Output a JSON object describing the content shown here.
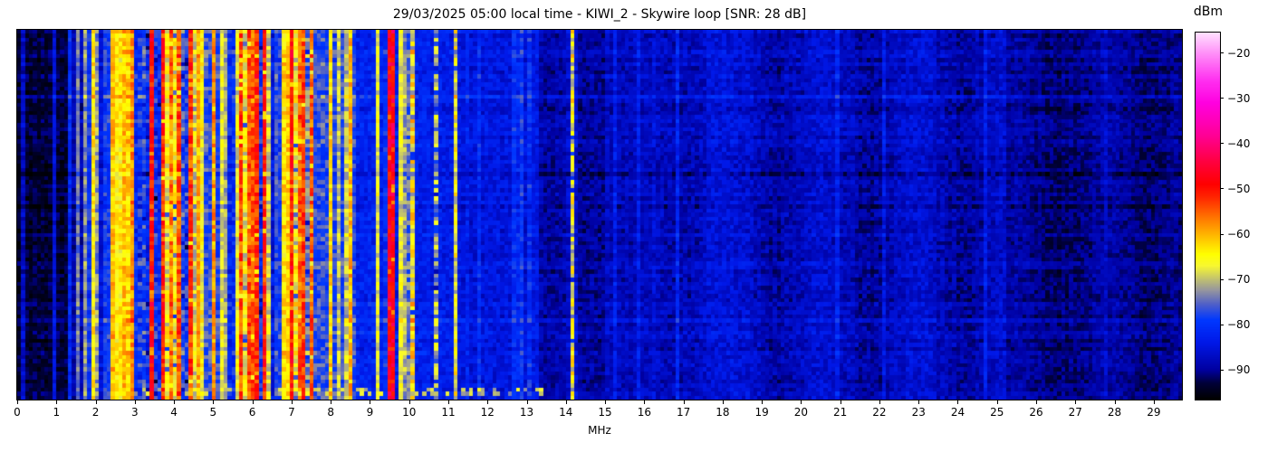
{
  "chart_data": {
    "type": "heatmap",
    "subtype": "radio-spectrogram-waterfall",
    "title": "29/03/2025 05:00 local time - KIWI_2 - Skywire loop [SNR: 28 dB]",
    "xlabel": "MHz",
    "x_range": [
      0,
      29.72
    ],
    "x_tick_labels": [
      "0",
      "1",
      "2",
      "3",
      "4",
      "5",
      "6",
      "7",
      "8",
      "9",
      "10",
      "11",
      "12",
      "13",
      "14",
      "15",
      "16",
      "17",
      "18",
      "19",
      "20",
      "21",
      "22",
      "23",
      "24",
      "25",
      "26",
      "27",
      "28",
      "29"
    ],
    "x_tick_values": [
      0,
      1,
      2,
      3,
      4,
      5,
      6,
      7,
      8,
      9,
      10,
      11,
      12,
      13,
      14,
      15,
      16,
      17,
      18,
      19,
      20,
      21,
      22,
      23,
      24,
      25,
      26,
      27,
      28,
      29
    ],
    "y_axis_note": "time axis, no tick labels shown",
    "grid_visible": false,
    "legend": "colorbar right",
    "colorbar": {
      "label": "dBm",
      "tick_values": [
        -20,
        -30,
        -40,
        -50,
        -60,
        -70,
        -80,
        -90
      ],
      "tick_labels": [
        "−20",
        "−30",
        "−40",
        "−50",
        "−60",
        "−70",
        "−80",
        "−90"
      ],
      "vmin": -96.5,
      "vmax": -15.5,
      "gradient_stops": [
        [
          -96.5,
          "#000000"
        ],
        [
          -93.0,
          "#000038"
        ],
        [
          -90.0,
          "#0000a0"
        ],
        [
          -84.0,
          "#0018e8"
        ],
        [
          -79.0,
          "#0038ff"
        ],
        [
          -75.5,
          "#5060c8"
        ],
        [
          -72.5,
          "#9494a0"
        ],
        [
          -70.0,
          "#c0c070"
        ],
        [
          -67.0,
          "#f8f830"
        ],
        [
          -64.5,
          "#ffff00"
        ],
        [
          -61.0,
          "#ffc400"
        ],
        [
          -57.0,
          "#ff8000"
        ],
        [
          -52.0,
          "#ff2800"
        ],
        [
          -49.0,
          "#ff0000"
        ],
        [
          -44.0,
          "#ff0040"
        ],
        [
          -38.0,
          "#ff0098"
        ],
        [
          -31.0,
          "#ff00e0"
        ],
        [
          -26.0,
          "#ff30f0"
        ],
        [
          -20.0,
          "#ff90f8"
        ],
        [
          -15.5,
          "#ffe0ff"
        ]
      ]
    },
    "signal_bands": [
      {
        "f0": 0.0,
        "f1": 1.4,
        "base": -93.0,
        "noise": 2.4,
        "gapP": 0.0,
        "gapD": 0,
        "carP": 0.03,
        "cb0": 4,
        "cb1": 9,
        "mod": 0
      },
      {
        "f0": 1.4,
        "f1": 1.78,
        "base": -88.0,
        "noise": 3.0,
        "gapP": 0.1,
        "gapD": 6,
        "carP": 0.3,
        "cb0": 8,
        "cb1": 17,
        "mod": 0
      },
      {
        "f0": 1.78,
        "f1": 2.12,
        "base": -80.0,
        "noise": 3.5,
        "gapP": 0.15,
        "gapD": 6,
        "carP": 0.5,
        "cb0": 8,
        "cb1": 18,
        "mod": 0
      },
      {
        "f0": 2.12,
        "f1": 2.58,
        "base": -79.0,
        "noise": 3.5,
        "gapP": 0.2,
        "gapD": 6,
        "carP": 0.5,
        "cb0": 6,
        "cb1": 20,
        "mod": 0
      },
      {
        "f0": 2.58,
        "f1": 3.12,
        "base": -74.0,
        "noise": 4.0,
        "gapP": 0.2,
        "gapD": 8,
        "carP": 0.6,
        "cb0": 6,
        "cb1": 18,
        "mod": 0
      },
      {
        "f0": 3.12,
        "f1": 4.52,
        "base": -66.0,
        "noise": 5.0,
        "gapP": 0.22,
        "gapD": 11,
        "carP": 0.55,
        "cb0": 8,
        "cb1": 17,
        "mod": 0
      },
      {
        "f0": 4.52,
        "f1": 5.15,
        "base": -77.0,
        "noise": 4.0,
        "gapP": 0.15,
        "gapD": 5,
        "carP": 0.5,
        "cb0": 6,
        "cb1": 20,
        "mod": 0
      },
      {
        "f0": 5.15,
        "f1": 5.65,
        "base": -73.0,
        "noise": 4.0,
        "gapP": 0.2,
        "gapD": 7,
        "carP": 0.5,
        "cb0": 3,
        "cb1": 10,
        "mod": 0
      },
      {
        "f0": 5.65,
        "f1": 6.38,
        "base": -66.0,
        "noise": 5.0,
        "gapP": 0.22,
        "gapD": 11,
        "carP": 0.55,
        "cb0": 8,
        "cb1": 17,
        "mod": 0
      },
      {
        "f0": 6.38,
        "f1": 6.95,
        "base": -78.0,
        "noise": 4.0,
        "gapP": 0.15,
        "gapD": 5,
        "carP": 0.45,
        "cb0": 8,
        "cb1": 20,
        "mod": 0
      },
      {
        "f0": 6.95,
        "f1": 7.55,
        "base": -66.0,
        "noise": 5.0,
        "gapP": 0.2,
        "gapD": 11,
        "carP": 0.55,
        "cb0": 8,
        "cb1": 17,
        "mod": 0
      },
      {
        "f0": 7.55,
        "f1": 8.6,
        "base": -77.0,
        "noise": 4.0,
        "gapP": 0.15,
        "gapD": 6,
        "carP": 0.45,
        "cb0": 5,
        "cb1": 19,
        "mod": 0
      },
      {
        "f0": 8.6,
        "f1": 9.38,
        "base": -82.0,
        "noise": 3.2,
        "gapP": 0.1,
        "gapD": 4,
        "carP": 0.22,
        "cb0": 5,
        "cb1": 15,
        "mod": 0
      },
      {
        "f0": 9.38,
        "f1": 9.62,
        "base": -80.0,
        "noise": 3.5,
        "gapP": 0.0,
        "gapD": 0,
        "carP": 0.3,
        "cb0": 5,
        "cb1": 12,
        "mod": 0
      },
      {
        "f0": 9.62,
        "f1": 10.15,
        "base": -75.0,
        "noise": 4.0,
        "gapP": 0.2,
        "gapD": 6,
        "carP": 0.5,
        "cb0": 3,
        "cb1": 11,
        "mod": 0
      },
      {
        "f0": 10.15,
        "f1": 11.25,
        "base": -83.0,
        "noise": 3.0,
        "gapP": 0.0,
        "gapD": 0,
        "carP": 0.15,
        "cb0": 3,
        "cb1": 12,
        "mod": 0
      },
      {
        "f0": 11.25,
        "f1": 13.3,
        "base": -84.5,
        "noise": 3.0,
        "gapP": 0.0,
        "gapD": 0,
        "carP": 0.1,
        "cb0": 2,
        "cb1": 8,
        "mod": 0
      },
      {
        "f0": 13.3,
        "f1": 14.05,
        "base": -88.5,
        "noise": 2.6,
        "gapP": 0.0,
        "gapD": 0,
        "carP": 0.05,
        "cb0": 2,
        "cb1": 6,
        "mod": 0
      },
      {
        "f0": 14.05,
        "f1": 14.35,
        "base": -86.0,
        "noise": 3.0,
        "gapP": 0.0,
        "gapD": 0,
        "carP": 0.25,
        "cb0": 4,
        "cb1": 10,
        "mod": 0
      },
      {
        "f0": 14.35,
        "f1": 16.2,
        "base": -88.5,
        "noise": 2.6,
        "gapP": 0.0,
        "gapD": 0,
        "carP": 0.04,
        "cb0": 2,
        "cb1": 6,
        "mod": 1.0
      },
      {
        "f0": 16.2,
        "f1": 19.0,
        "base": -86.5,
        "noise": 3.0,
        "gapP": 0.0,
        "gapD": 0,
        "carP": 0.06,
        "cb0": 2,
        "cb1": 5,
        "mod": 1.2
      },
      {
        "f0": 19.0,
        "f1": 25.2,
        "base": -87.5,
        "noise": 2.8,
        "gapP": 0.0,
        "gapD": 0,
        "carP": 0.05,
        "cb0": 2,
        "cb1": 5,
        "mod": 1.6
      },
      {
        "f0": 25.2,
        "f1": 29.72,
        "base": -90.0,
        "noise": 2.3,
        "gapP": 0.0,
        "gapD": 0,
        "carP": 0.02,
        "cb0": 2,
        "cb1": 4,
        "mod": 1.0
      }
    ],
    "carrier_lines": [
      {
        "f": 0.18,
        "lvl": -87,
        "fl": 3,
        "w": 1
      },
      {
        "f": 1.35,
        "lvl": -81,
        "fl": 3,
        "w": 1
      },
      {
        "f": 1.56,
        "lvl": -74,
        "fl": 3,
        "w": 1
      },
      {
        "f": 1.93,
        "lvl": -64,
        "fl": 4,
        "w": 1
      },
      {
        "f": 5.32,
        "lvl": -71,
        "fl": 3,
        "w": 1
      },
      {
        "f": 6.8,
        "lvl": -72,
        "fl": 4,
        "w": 1
      },
      {
        "f": 9.53,
        "lvl": -47,
        "fl": 5,
        "w": 2
      },
      {
        "f": 9.8,
        "lvl": -72,
        "fl": 3,
        "w": 1
      },
      {
        "f": 10.05,
        "lvl": -69,
        "fl": 7,
        "w": 1
      },
      {
        "f": 10.72,
        "lvl": -72,
        "fl": 7,
        "w": 1
      },
      {
        "f": 11.18,
        "lvl": -66,
        "fl": 6,
        "w": 1
      },
      {
        "f": 12.92,
        "lvl": -79,
        "fl": 3,
        "w": 1
      },
      {
        "f": 13.05,
        "lvl": -80,
        "fl": 4,
        "w": 1
      },
      {
        "f": 14.17,
        "lvl": -67,
        "fl": 7,
        "w": 1
      },
      {
        "f": 15.25,
        "lvl": -83,
        "fl": 3,
        "w": 1
      },
      {
        "f": 16.8,
        "lvl": -82,
        "fl": 3,
        "w": 1
      }
    ],
    "bottom_activity_rows": {
      "f0": 2.6,
      "f1": 13.4,
      "p": 0.45,
      "lvl0": -74,
      "lvl1": -66,
      "rows_from_bottom": [
        2,
        3
      ]
    },
    "grid": {
      "cols": 299,
      "rows": 91
    },
    "seed": 987654321
  }
}
